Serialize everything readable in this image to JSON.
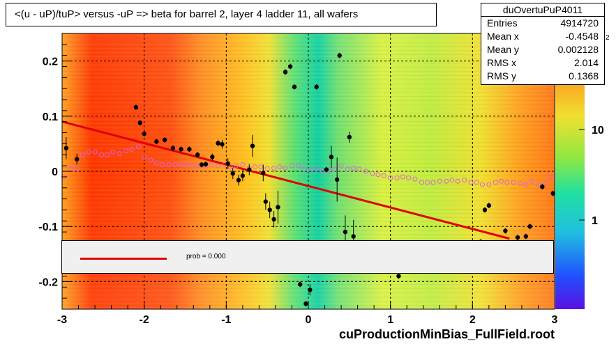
{
  "chart_data": {
    "type": "scatter",
    "title": "<(u - uP)/tuP> versus  -uP => beta for barrel 2, layer 4 ladder 11, all wafers",
    "xlim": [
      -3,
      3
    ],
    "ylim": [
      -0.25,
      0.25
    ],
    "x_ticks": [
      "-3",
      "-2",
      "-1",
      "0",
      "1",
      "2",
      "3"
    ],
    "y_ticks": [
      "-0.2",
      "-0.1",
      "0",
      "0.1",
      "0.2"
    ],
    "z_ticks": [
      "1",
      "10"
    ],
    "z_exponent": "2",
    "grid": true,
    "fit_line": {
      "x": [
        -3,
        2.45
      ],
      "y": [
        0.09,
        -0.122
      ]
    },
    "profile_points": [
      {
        "x": -2.95,
        "y": 0.042,
        "err": 0.02
      },
      {
        "x": -2.82,
        "y": 0.022,
        "err": 0.01
      },
      {
        "x": -2.1,
        "y": 0.116,
        "err": 0.005
      },
      {
        "x": -2.05,
        "y": 0.088,
        "err": 0.005
      },
      {
        "x": -2.0,
        "y": 0.068,
        "err": 0.005
      },
      {
        "x": -1.85,
        "y": 0.054,
        "err": 0.005
      },
      {
        "x": -1.75,
        "y": 0.057,
        "err": 0.005
      },
      {
        "x": -1.65,
        "y": 0.042,
        "err": 0.005
      },
      {
        "x": -1.55,
        "y": 0.04,
        "err": 0.005
      },
      {
        "x": -1.45,
        "y": 0.04,
        "err": 0.005
      },
      {
        "x": -1.35,
        "y": 0.03,
        "err": 0.005
      },
      {
        "x": -1.3,
        "y": 0.012,
        "err": 0.005
      },
      {
        "x": -1.25,
        "y": 0.013,
        "err": 0.005
      },
      {
        "x": -1.17,
        "y": 0.026,
        "err": 0.006
      },
      {
        "x": -1.1,
        "y": 0.051,
        "err": 0.006
      },
      {
        "x": -1.05,
        "y": 0.049,
        "err": 0.008
      },
      {
        "x": -0.98,
        "y": 0.014,
        "err": 0.01
      },
      {
        "x": -0.92,
        "y": -0.004,
        "err": 0.01
      },
      {
        "x": -0.85,
        "y": -0.016,
        "err": 0.01
      },
      {
        "x": -0.8,
        "y": -0.008,
        "err": 0.01
      },
      {
        "x": -0.72,
        "y": 0.003,
        "err": 0.01
      },
      {
        "x": -0.68,
        "y": 0.046,
        "err": 0.02
      },
      {
        "x": -0.55,
        "y": -0.003,
        "err": 0.015
      },
      {
        "x": -0.52,
        "y": -0.055,
        "err": 0.015
      },
      {
        "x": -0.47,
        "y": -0.07,
        "err": 0.015
      },
      {
        "x": -0.42,
        "y": -0.087,
        "err": 0.015
      },
      {
        "x": -0.37,
        "y": -0.065,
        "err": 0.03
      },
      {
        "x": -0.28,
        "y": 0.18,
        "err": 0.005
      },
      {
        "x": -0.22,
        "y": 0.19,
        "err": 0.005
      },
      {
        "x": -0.17,
        "y": 0.153,
        "err": 0.005
      },
      {
        "x": -0.1,
        "y": -0.205,
        "err": 0.005
      },
      {
        "x": -0.03,
        "y": -0.24,
        "err": 0.005
      },
      {
        "x": 0.02,
        "y": -0.215,
        "err": 0.01
      },
      {
        "x": 0.1,
        "y": 0.153,
        "err": 0.005
      },
      {
        "x": 0.22,
        "y": 0.003,
        "err": 0.005
      },
      {
        "x": 0.28,
        "y": 0.026,
        "err": 0.02
      },
      {
        "x": 0.35,
        "y": -0.015,
        "err": 0.04
      },
      {
        "x": 0.38,
        "y": 0.21,
        "err": 0.005
      },
      {
        "x": 0.45,
        "y": -0.11,
        "err": 0.03
      },
      {
        "x": 0.5,
        "y": 0.062,
        "err": 0.01
      },
      {
        "x": 0.55,
        "y": -0.118,
        "err": 0.03
      },
      {
        "x": 1.1,
        "y": -0.19,
        "err": 0.005
      },
      {
        "x": 2.1,
        "y": -0.128,
        "err": 0.005
      },
      {
        "x": 2.15,
        "y": -0.07,
        "err": 0.005
      },
      {
        "x": 2.2,
        "y": -0.062,
        "err": 0.005
      },
      {
        "x": 2.4,
        "y": -0.108,
        "err": 0.005
      },
      {
        "x": 2.55,
        "y": -0.12,
        "err": 0.005
      },
      {
        "x": 2.65,
        "y": -0.118,
        "err": 0.005
      },
      {
        "x": 2.7,
        "y": -0.1,
        "err": 0.005
      },
      {
        "x": 2.85,
        "y": -0.028,
        "err": 0.005
      },
      {
        "x": 2.98,
        "y": -0.04,
        "err": 0.005
      }
    ],
    "mean_points": {
      "x": [
        -2.98,
        -2.9,
        -2.82,
        -2.75,
        -2.68,
        -2.6,
        -2.52,
        -2.45,
        -2.38,
        -2.3,
        -2.22,
        -2.15,
        -2.07,
        -2.0,
        -1.92,
        -1.85,
        -1.78,
        -1.7,
        -1.62,
        -1.55,
        -1.48,
        -1.4,
        -1.32,
        -1.25,
        -1.18,
        -1.1,
        -1.02,
        -0.95,
        -0.88,
        -0.8,
        -0.72,
        -0.65,
        -0.58,
        -0.5,
        -0.42,
        -0.35,
        -0.28,
        -0.2,
        -0.12,
        -0.05,
        0.02,
        0.1,
        0.18,
        0.25,
        0.32,
        0.4,
        0.48,
        0.55,
        0.62,
        0.7,
        0.78,
        0.85,
        0.92,
        1.0,
        1.08,
        1.15,
        1.22,
        1.3,
        1.38,
        1.45,
        1.52,
        1.6,
        1.68,
        1.75,
        1.82,
        1.9,
        1.98,
        2.05,
        2.12,
        2.2,
        2.28,
        2.35,
        2.42,
        2.5,
        2.58,
        2.65,
        2.72,
        2.8,
        2.88,
        2.95
      ],
      "y": [
        -0.01,
        0.005,
        0.005,
        0.03,
        0.035,
        0.035,
        0.03,
        0.03,
        0.035,
        0.032,
        0.037,
        0.04,
        0.045,
        0.025,
        0.02,
        0.015,
        0.012,
        0.012,
        0.012,
        0.012,
        0.012,
        0.01,
        0.01,
        0.01,
        0.012,
        0.01,
        0.012,
        0.008,
        0.01,
        0.012,
        0.006,
        0.008,
        0.008,
        0.005,
        0.006,
        0.008,
        0.006,
        0.01,
        0.01,
        0.004,
        0.002,
        0.005,
        0.0,
        0.002,
        0.004,
        0.01,
        0.004,
        0.006,
        0.004,
        0.0,
        -0.004,
        -0.006,
        -0.008,
        -0.012,
        -0.012,
        -0.01,
        -0.012,
        -0.014,
        -0.02,
        -0.02,
        -0.02,
        -0.018,
        -0.018,
        -0.016,
        -0.018,
        -0.016,
        -0.02,
        -0.02,
        -0.024,
        -0.024,
        -0.02,
        -0.018,
        -0.02,
        -0.02,
        -0.022,
        -0.024,
        -0.018,
        -0.024,
        -0.022,
        -0.01
      ]
    },
    "series_colors": {
      "profile": "#000000",
      "mean": "#e060e0",
      "fit": "#e00000"
    }
  },
  "stats": {
    "title": "duOvertuPuP4011",
    "rows": [
      {
        "label": "Entries",
        "value": "4914720"
      },
      {
        "label": "Mean x",
        "value": "-0.4548"
      },
      {
        "label": "Mean y",
        "value": "0.002128"
      },
      {
        "label": "RMS x",
        "value": "2.014"
      },
      {
        "label": "RMS y",
        "value": "0.1368"
      }
    ]
  },
  "legend": {
    "text": "prob = 0.000"
  },
  "footer": "cuProductionMinBias_FullField.root"
}
